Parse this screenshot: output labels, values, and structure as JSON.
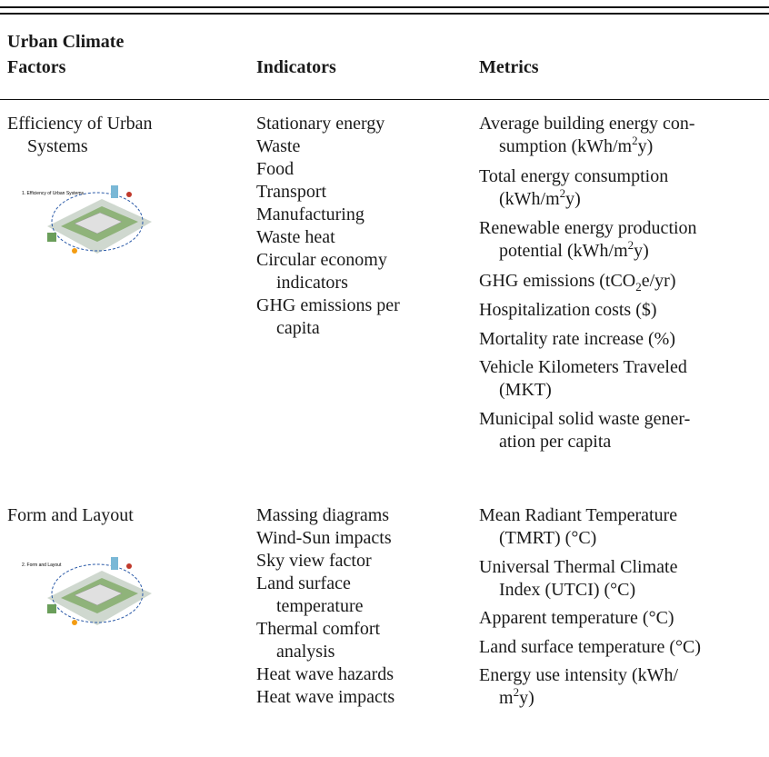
{
  "table": {
    "header": [
      "Urban Climate\nFactors",
      "Indicators",
      "Metrics"
    ],
    "rows": [
      {
        "factor": "Efficiency of Urban\nSystems",
        "image_caption": "1. Efficiency of Urban Systems",
        "indicators": [
          "Stationary energy",
          "Waste",
          "Food",
          "Transport",
          "Manufacturing",
          "Waste heat",
          "Circular economy\nindicators",
          "GHG emissions per\ncapita"
        ],
        "metrics": [
          [
            "Average building energy con-\nsumption (kWh/m",
            {
              "sup": "2"
            },
            "y)"
          ],
          [
            "Total energy consumption\n(kWh/m",
            {
              "sup": "2"
            },
            "y)"
          ],
          [
            "Renewable energy production\npotential (kWh/m",
            {
              "sup": "2"
            },
            "y)"
          ],
          [
            "GHG emissions (tCO",
            {
              "sub": "2"
            },
            "e/yr)"
          ],
          [
            "Hospitalization costs ($)"
          ],
          [
            "Mortality rate increase (%)"
          ],
          [
            "Vehicle Kilometers Traveled\n(MKT)"
          ],
          [
            "Municipal solid waste gener-\nation per capita"
          ]
        ]
      },
      {
        "factor": "Form and Layout",
        "image_caption": "2. Form and Layout",
        "indicators": [
          "Massing diagrams",
          "Wind-Sun impacts",
          "Sky view factor",
          "Land surface\ntemperature",
          "Thermal comfort\nanalysis",
          "Heat wave hazards",
          "Heat wave impacts"
        ],
        "metrics": [
          [
            "Mean Radiant Temperature\n(TMRT) (°C)"
          ],
          [
            "Universal Thermal Climate\nIndex (UTCI) (°C)"
          ],
          [
            "Apparent temperature (°C)"
          ],
          [
            "Land surface temperature (°C)"
          ],
          [
            "Energy use intensity (kWh/\nm",
            {
              "sup": "2"
            },
            "y)"
          ]
        ]
      }
    ]
  }
}
